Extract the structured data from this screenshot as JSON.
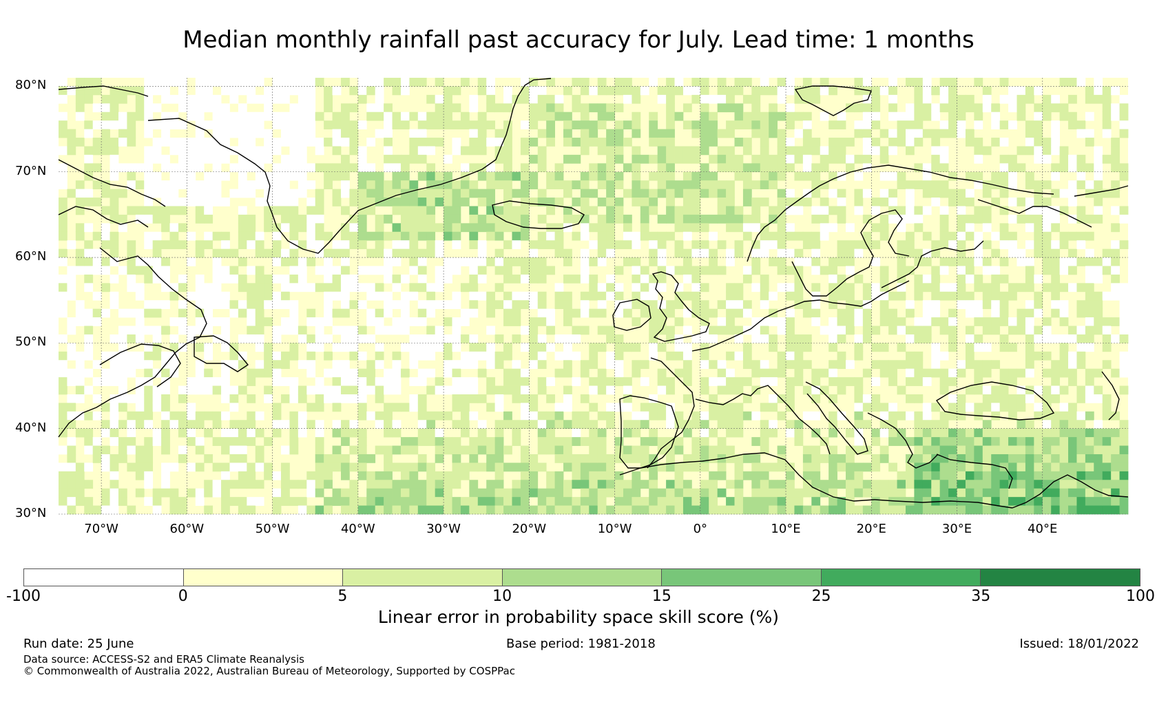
{
  "title": "Median monthly rainfall past accuracy for July. Lead time: 1 months",
  "map": {
    "lat_labels": [
      "80°N",
      "70°N",
      "60°N",
      "50°N",
      "40°N",
      "30°N"
    ],
    "lon_labels": [
      "70°W",
      "60°W",
      "50°W",
      "40°W",
      "30°W",
      "20°W",
      "10°W",
      "0°",
      "10°E",
      "20°E",
      "30°E",
      "40°E"
    ],
    "lat_range": [
      30,
      81
    ],
    "lon_range": [
      -75,
      50
    ],
    "coastline_color": "#000000",
    "gridline_style": "dotted"
  },
  "colorbar": {
    "label": "Linear error in probability space skill score (%)",
    "ticks": [
      "-100",
      "0",
      "5",
      "10",
      "15",
      "25",
      "35",
      "100"
    ],
    "colors": [
      "#ffffff",
      "#ffffcc",
      "#d9f0a3",
      "#addd8e",
      "#78c679",
      "#41ab5d",
      "#238443"
    ]
  },
  "footer": {
    "run_date": "Run date: 25 June",
    "base_period": "Base period: 1981-2018",
    "issued": "Issued: 18/01/2022",
    "data_source": "Data source: ACCESS-S2 and ERA5 Climate Reanalysis",
    "copyright": "© Commonwealth of Australia 2022, Australian Bureau of Meteorology, Supported by COSPPac"
  }
}
